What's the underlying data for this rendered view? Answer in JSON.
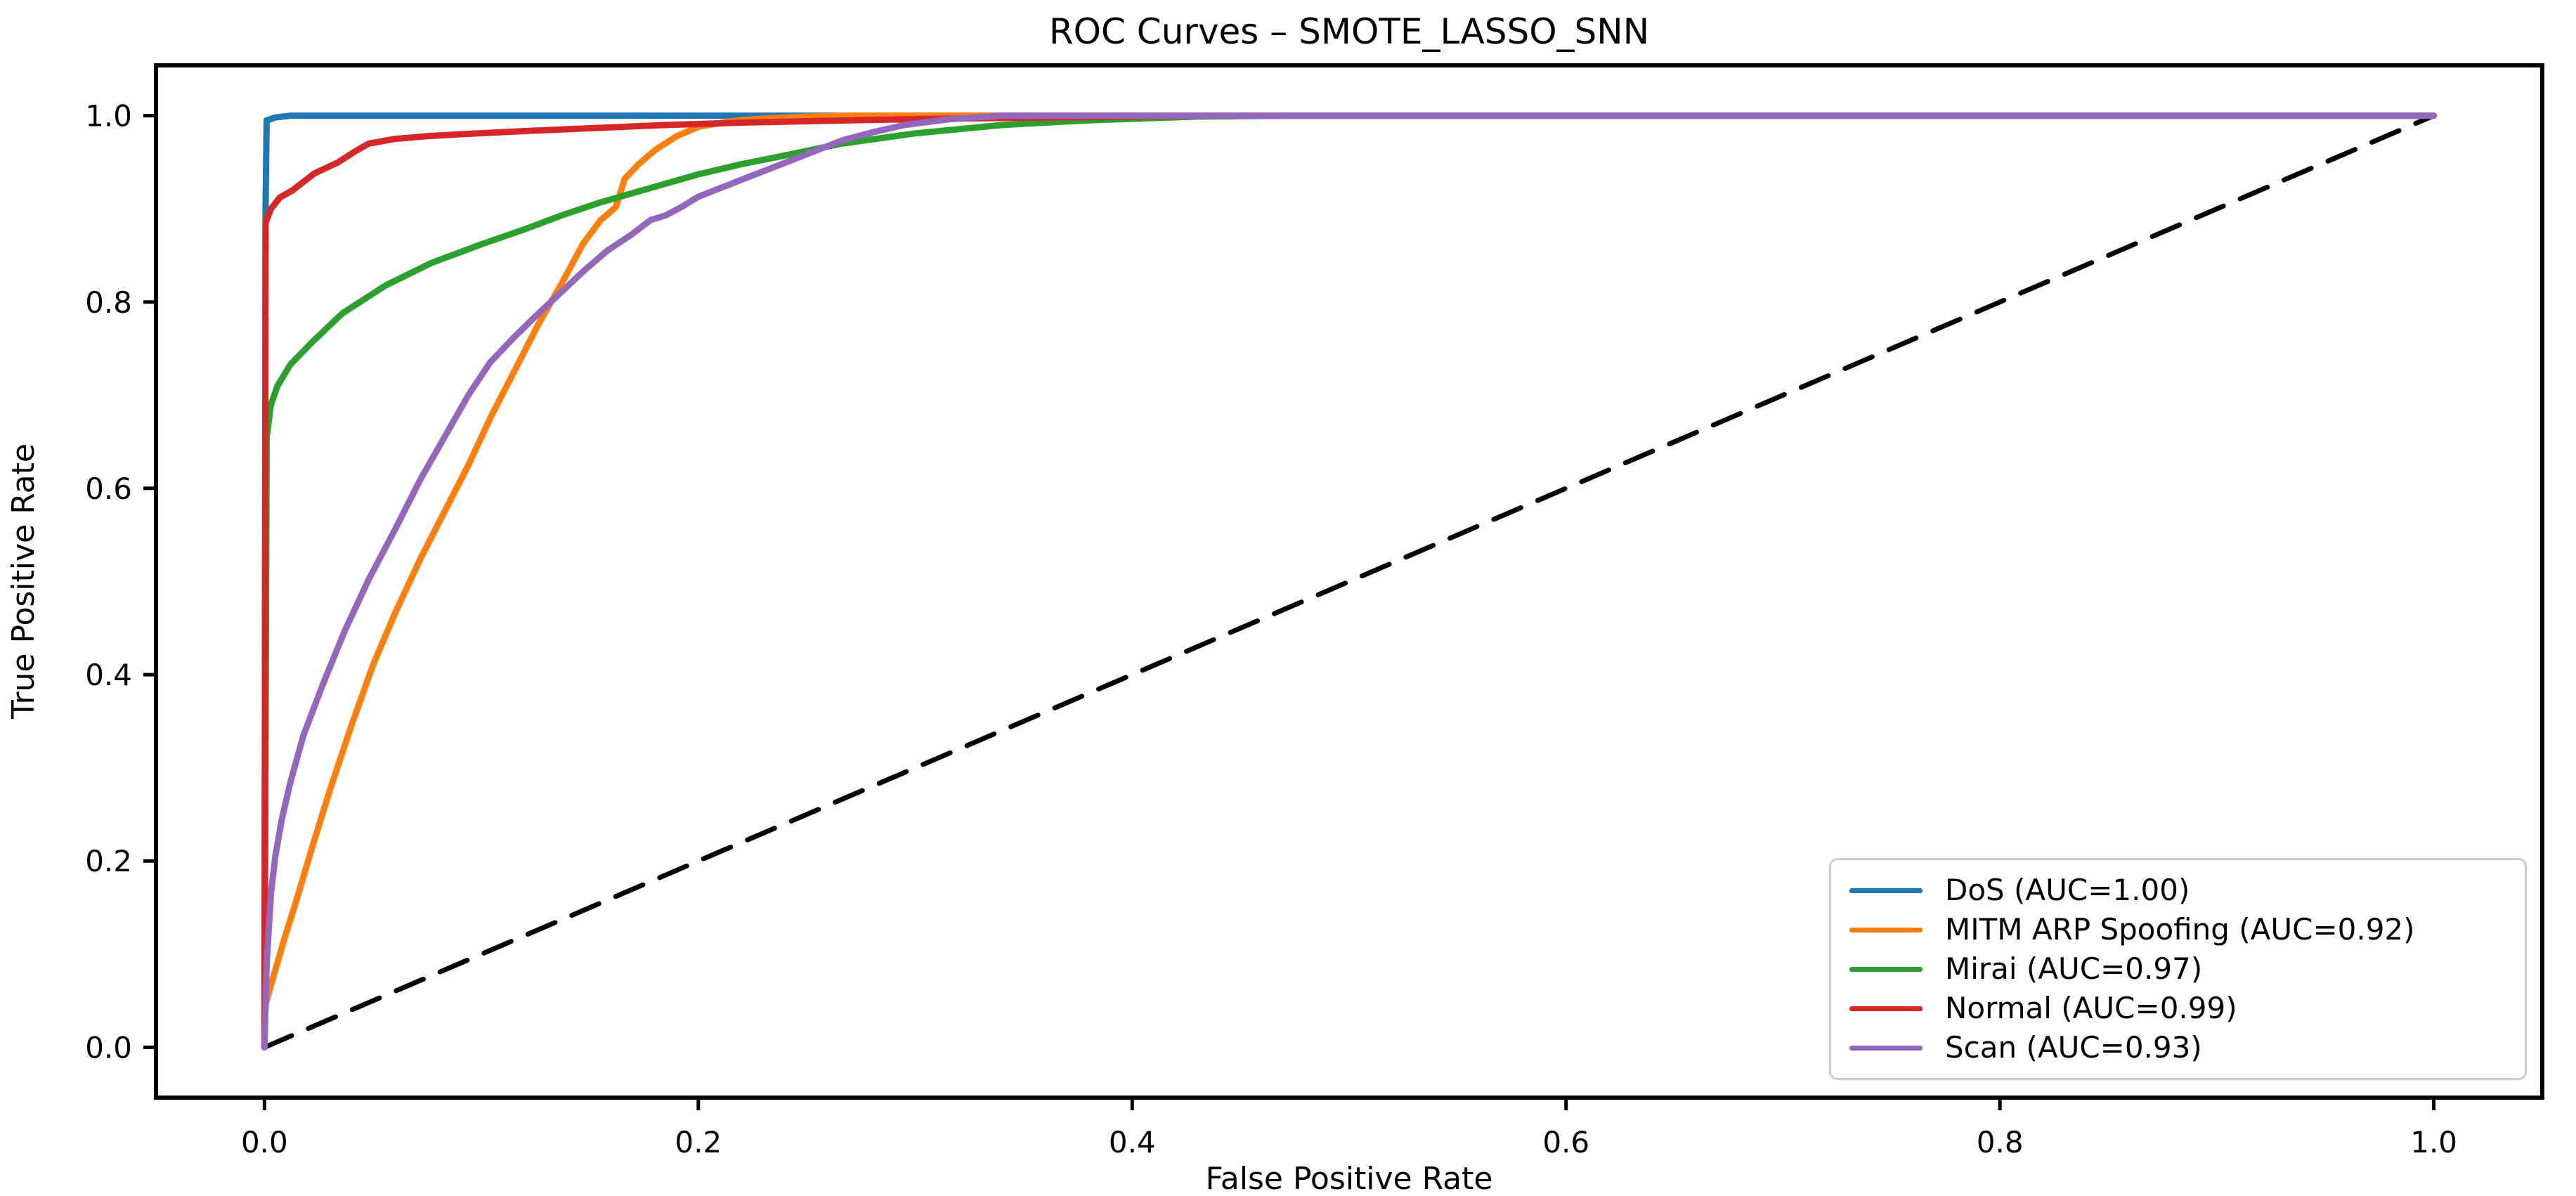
{
  "chart_data": {
    "type": "line",
    "title": "ROC Curves – SMOTE_LASSO_SNN",
    "xlabel": "False Positive Rate",
    "ylabel": "True Positive Rate",
    "xlim": [
      -0.05,
      1.05
    ],
    "ylim": [
      -0.054,
      1.054
    ],
    "grid": false,
    "legend_position": "lower right",
    "x_ticks": [
      {
        "v": 0.0,
        "label": "0.0"
      },
      {
        "v": 0.2,
        "label": "0.2"
      },
      {
        "v": 0.4,
        "label": "0.4"
      },
      {
        "v": 0.6,
        "label": "0.6"
      },
      {
        "v": 0.8,
        "label": "0.8"
      },
      {
        "v": 1.0,
        "label": "1.0"
      }
    ],
    "y_ticks": [
      {
        "v": 0.0,
        "label": "0.0"
      },
      {
        "v": 0.2,
        "label": "0.2"
      },
      {
        "v": 0.4,
        "label": "0.4"
      },
      {
        "v": 0.6,
        "label": "0.6"
      },
      {
        "v": 0.8,
        "label": "0.8"
      },
      {
        "v": 1.0,
        "label": "1.0"
      }
    ],
    "series": [
      {
        "name": "chance-diagonal",
        "color": "#000000",
        "style": "dashed",
        "in_legend": false,
        "points": [
          [
            0,
            0
          ],
          [
            1,
            1
          ]
        ]
      },
      {
        "name": "DoS (AUC=1.00)",
        "auc": 1.0,
        "color": "#1f77b4",
        "style": "solid",
        "in_legend": true,
        "points": [
          [
            0,
            0
          ],
          [
            0.0005,
            0.9
          ],
          [
            0.001,
            0.995
          ],
          [
            0.005,
            0.998
          ],
          [
            0.012,
            1.0
          ],
          [
            1,
            1
          ]
        ]
      },
      {
        "name": "MITM ARP Spoofing (AUC=0.92)",
        "auc": 0.92,
        "color": "#ff7f0e",
        "style": "solid",
        "in_legend": true,
        "points": [
          [
            0,
            0
          ],
          [
            0,
            0.042
          ],
          [
            0.004,
            0.075
          ],
          [
            0.009,
            0.115
          ],
          [
            0.015,
            0.16
          ],
          [
            0.022,
            0.215
          ],
          [
            0.03,
            0.275
          ],
          [
            0.04,
            0.345
          ],
          [
            0.05,
            0.41
          ],
          [
            0.06,
            0.465
          ],
          [
            0.072,
            0.525
          ],
          [
            0.083,
            0.575
          ],
          [
            0.094,
            0.625
          ],
          [
            0.104,
            0.675
          ],
          [
            0.115,
            0.725
          ],
          [
            0.126,
            0.775
          ],
          [
            0.137,
            0.82
          ],
          [
            0.147,
            0.863
          ],
          [
            0.155,
            0.888
          ],
          [
            0.162,
            0.902
          ],
          [
            0.166,
            0.932
          ],
          [
            0.172,
            0.947
          ],
          [
            0.18,
            0.963
          ],
          [
            0.19,
            0.978
          ],
          [
            0.2,
            0.988
          ],
          [
            0.215,
            0.994
          ],
          [
            0.23,
            0.997
          ],
          [
            0.25,
            0.999
          ],
          [
            0.27,
            1.0
          ],
          [
            1,
            1
          ]
        ]
      },
      {
        "name": "Mirai (AUC=0.97)",
        "auc": 0.97,
        "color": "#2ca02c",
        "style": "solid",
        "in_legend": true,
        "points": [
          [
            0,
            0
          ],
          [
            0.001,
            0.655
          ],
          [
            0.003,
            0.69
          ],
          [
            0.006,
            0.71
          ],
          [
            0.012,
            0.733
          ],
          [
            0.022,
            0.757
          ],
          [
            0.036,
            0.788
          ],
          [
            0.056,
            0.818
          ],
          [
            0.077,
            0.842
          ],
          [
            0.1,
            0.862
          ],
          [
            0.12,
            0.878
          ],
          [
            0.137,
            0.893
          ],
          [
            0.155,
            0.907
          ],
          [
            0.17,
            0.917
          ],
          [
            0.2,
            0.937
          ],
          [
            0.22,
            0.948
          ],
          [
            0.235,
            0.955
          ],
          [
            0.266,
            0.97
          ],
          [
            0.3,
            0.981
          ],
          [
            0.34,
            0.99
          ],
          [
            0.38,
            0.995
          ],
          [
            0.43,
            0.999
          ],
          [
            0.47,
            1.0
          ],
          [
            1,
            1
          ]
        ]
      },
      {
        "name": "Normal (AUC=0.99)",
        "auc": 0.99,
        "color": "#d62728",
        "style": "solid",
        "in_legend": true,
        "points": [
          [
            0,
            0
          ],
          [
            0.0005,
            0.885
          ],
          [
            0.003,
            0.9
          ],
          [
            0.007,
            0.912
          ],
          [
            0.013,
            0.92
          ],
          [
            0.023,
            0.938
          ],
          [
            0.034,
            0.95
          ],
          [
            0.042,
            0.962
          ],
          [
            0.048,
            0.97
          ],
          [
            0.06,
            0.975
          ],
          [
            0.075,
            0.978
          ],
          [
            0.09,
            0.98
          ],
          [
            0.12,
            0.9835
          ],
          [
            0.15,
            0.9865
          ],
          [
            0.185,
            0.99
          ],
          [
            0.22,
            0.9925
          ],
          [
            0.27,
            0.995
          ],
          [
            0.32,
            0.997
          ],
          [
            0.38,
            0.9985
          ],
          [
            0.43,
            1.0
          ],
          [
            1,
            1
          ]
        ]
      },
      {
        "name": "Scan (AUC=0.93)",
        "auc": 0.93,
        "color": "#9467bd",
        "style": "solid",
        "in_legend": true,
        "points": [
          [
            0,
            0
          ],
          [
            0.001,
            0.09
          ],
          [
            0.003,
            0.165
          ],
          [
            0.005,
            0.205
          ],
          [
            0.008,
            0.245
          ],
          [
            0.012,
            0.285
          ],
          [
            0.018,
            0.335
          ],
          [
            0.027,
            0.39
          ],
          [
            0.037,
            0.447
          ],
          [
            0.048,
            0.502
          ],
          [
            0.06,
            0.555
          ],
          [
            0.072,
            0.61
          ],
          [
            0.083,
            0.655
          ],
          [
            0.094,
            0.7
          ],
          [
            0.104,
            0.735
          ],
          [
            0.115,
            0.762
          ],
          [
            0.126,
            0.787
          ],
          [
            0.137,
            0.811
          ],
          [
            0.147,
            0.833
          ],
          [
            0.158,
            0.855
          ],
          [
            0.169,
            0.872
          ],
          [
            0.178,
            0.888
          ],
          [
            0.185,
            0.893
          ],
          [
            0.193,
            0.903
          ],
          [
            0.2,
            0.913
          ],
          [
            0.212,
            0.924
          ],
          [
            0.223,
            0.934
          ],
          [
            0.234,
            0.944
          ],
          [
            0.245,
            0.954
          ],
          [
            0.257,
            0.965
          ],
          [
            0.267,
            0.974
          ],
          [
            0.28,
            0.982
          ],
          [
            0.295,
            0.99
          ],
          [
            0.315,
            0.996
          ],
          [
            0.34,
            1.0
          ],
          [
            1,
            1
          ]
        ]
      }
    ]
  }
}
